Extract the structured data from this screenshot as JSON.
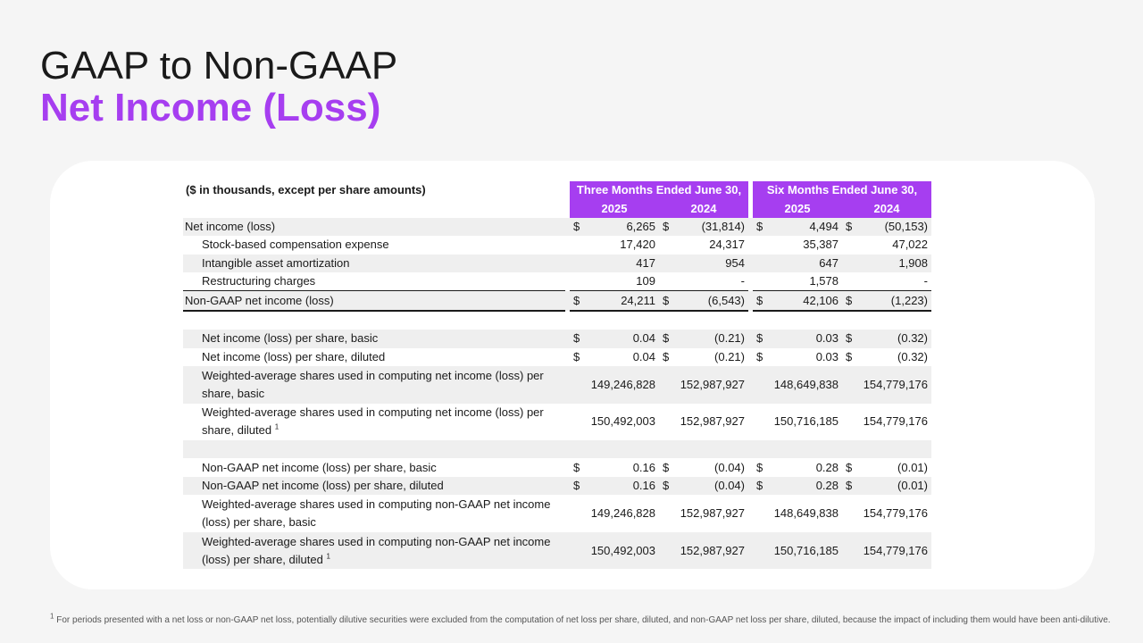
{
  "title": {
    "line1": "GAAP to Non-GAAP",
    "line2": "Net Income (Loss)"
  },
  "table": {
    "units_label": "($ in thousands, except per share amounts)",
    "period_headers": [
      "Three Months Ended June 30,",
      "Six Months Ended June 30,"
    ],
    "year_headers": [
      "2025",
      "2024",
      "2025",
      "2024"
    ],
    "rows": [
      {
        "label": "Net income (loss)",
        "dollar": [
          "$",
          "$",
          "$",
          "$"
        ],
        "values": [
          "6,265",
          "(31,814)",
          "4,494",
          "(50,153)"
        ]
      },
      {
        "label": "Stock-based compensation expense",
        "values": [
          "17,420",
          "24,317",
          "35,387",
          "47,022"
        ]
      },
      {
        "label": "Intangible asset amortization",
        "values": [
          "417",
          "954",
          "647",
          "1,908"
        ]
      },
      {
        "label": "Restructuring charges",
        "values": [
          "109",
          "-",
          "1,578",
          "-"
        ]
      },
      {
        "label": "Non-GAAP net income (loss)",
        "dollar": [
          "$",
          "$",
          "$",
          "$"
        ],
        "values": [
          "24,211",
          "(6,543)",
          "42,106",
          "(1,223)"
        ]
      },
      {
        "label": "Net income (loss) per share, basic",
        "dollar": [
          "$",
          "$",
          "$",
          "$"
        ],
        "values": [
          "0.04",
          "(0.21)",
          "0.03",
          "(0.32)"
        ]
      },
      {
        "label": "Net income (loss) per share, diluted",
        "dollar": [
          "$",
          "$",
          "$",
          "$"
        ],
        "values": [
          "0.04",
          "(0.21)",
          "0.03",
          "(0.32)"
        ]
      },
      {
        "label": "Weighted-average shares used in computing net income (loss) per share, basic",
        "values": [
          "149,246,828",
          "152,987,927",
          "148,649,838",
          "154,779,176"
        ]
      },
      {
        "label": "Weighted-average shares used in computing net income (loss) per share, diluted",
        "footnote_mark": "1",
        "values": [
          "150,492,003",
          "152,987,927",
          "150,716,185",
          "154,779,176"
        ]
      },
      {
        "label": "Non-GAAP net income (loss) per share, basic",
        "dollar": [
          "$",
          "$",
          "$",
          "$"
        ],
        "values": [
          "0.16",
          "(0.04)",
          "0.28",
          "(0.01)"
        ]
      },
      {
        "label": "Non-GAAP net income (loss) per share, diluted",
        "dollar": [
          "$",
          "$",
          "$",
          "$"
        ],
        "values": [
          "0.16",
          "(0.04)",
          "0.28",
          "(0.01)"
        ]
      },
      {
        "label": "Weighted-average shares used in computing non-GAAP net income (loss) per share, basic",
        "values": [
          "149,246,828",
          "152,987,927",
          "148,649,838",
          "154,779,176"
        ]
      },
      {
        "label": "Weighted-average shares used in computing non-GAAP net income (loss) per share, diluted",
        "footnote_mark": "1",
        "values": [
          "150,492,003",
          "152,987,927",
          "150,716,185",
          "154,779,176"
        ]
      }
    ]
  },
  "footnote": {
    "mark": "1",
    "text": "For periods presented with a net loss or non-GAAP net loss, potentially dilutive securities were excluded from the computation of net loss per share, diluted, and non-GAAP net loss per share, diluted, because the impact of including them would have been anti-dilutive."
  },
  "colors": {
    "accent": "#a63ef0",
    "row_shade": "#efefef"
  }
}
